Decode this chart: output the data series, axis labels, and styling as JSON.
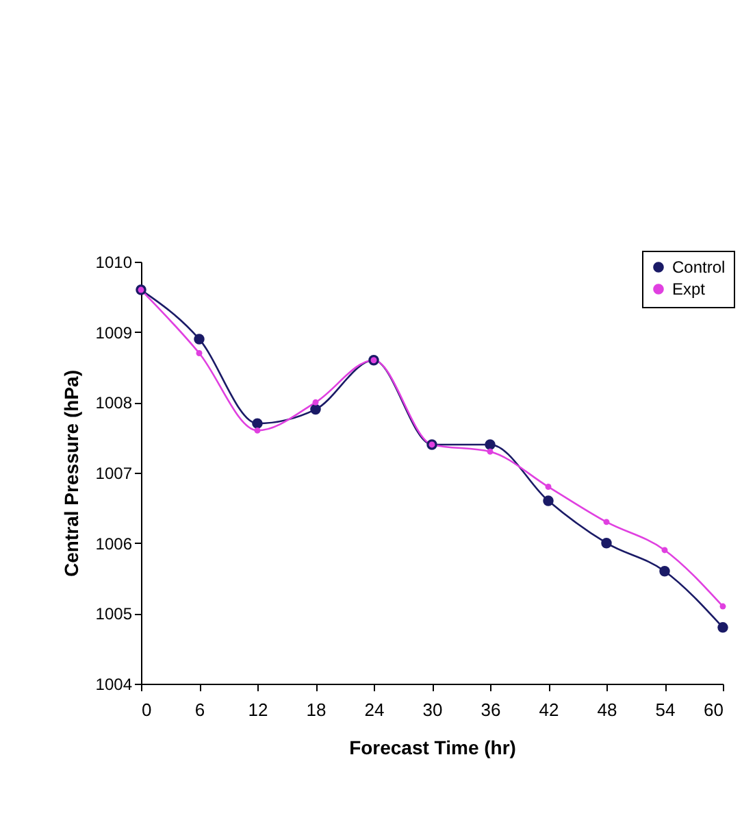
{
  "chart_data": {
    "type": "line",
    "xlabel": "Forecast Time (hr)",
    "ylabel": "Central Pressure (hPa)",
    "x": [
      0,
      6,
      12,
      18,
      24,
      30,
      36,
      42,
      48,
      54,
      60
    ],
    "series": [
      {
        "name": "Control",
        "color": "#1a1a66",
        "values": [
          1009.6,
          1008.9,
          1007.7,
          1007.9,
          1008.6,
          1007.4,
          1007.4,
          1006.6,
          1006.0,
          1005.6,
          1004.8
        ]
      },
      {
        "name": "Expt",
        "color": "#e040e0",
        "values": [
          1009.6,
          1008.7,
          1007.6,
          1008.0,
          1008.6,
          1007.4,
          1007.3,
          1006.8,
          1006.3,
          1005.9,
          1005.1
        ]
      }
    ],
    "xlim": [
      0,
      60
    ],
    "xticks": [
      0,
      6,
      12,
      18,
      24,
      30,
      36,
      42,
      48,
      54,
      60
    ],
    "ylim": [
      1004,
      1010
    ],
    "yticks": [
      1004,
      1005,
      1006,
      1007,
      1008,
      1009,
      1010
    ],
    "grid": false,
    "legend": "top right",
    "marker": "circle",
    "line_style": "solid"
  }
}
